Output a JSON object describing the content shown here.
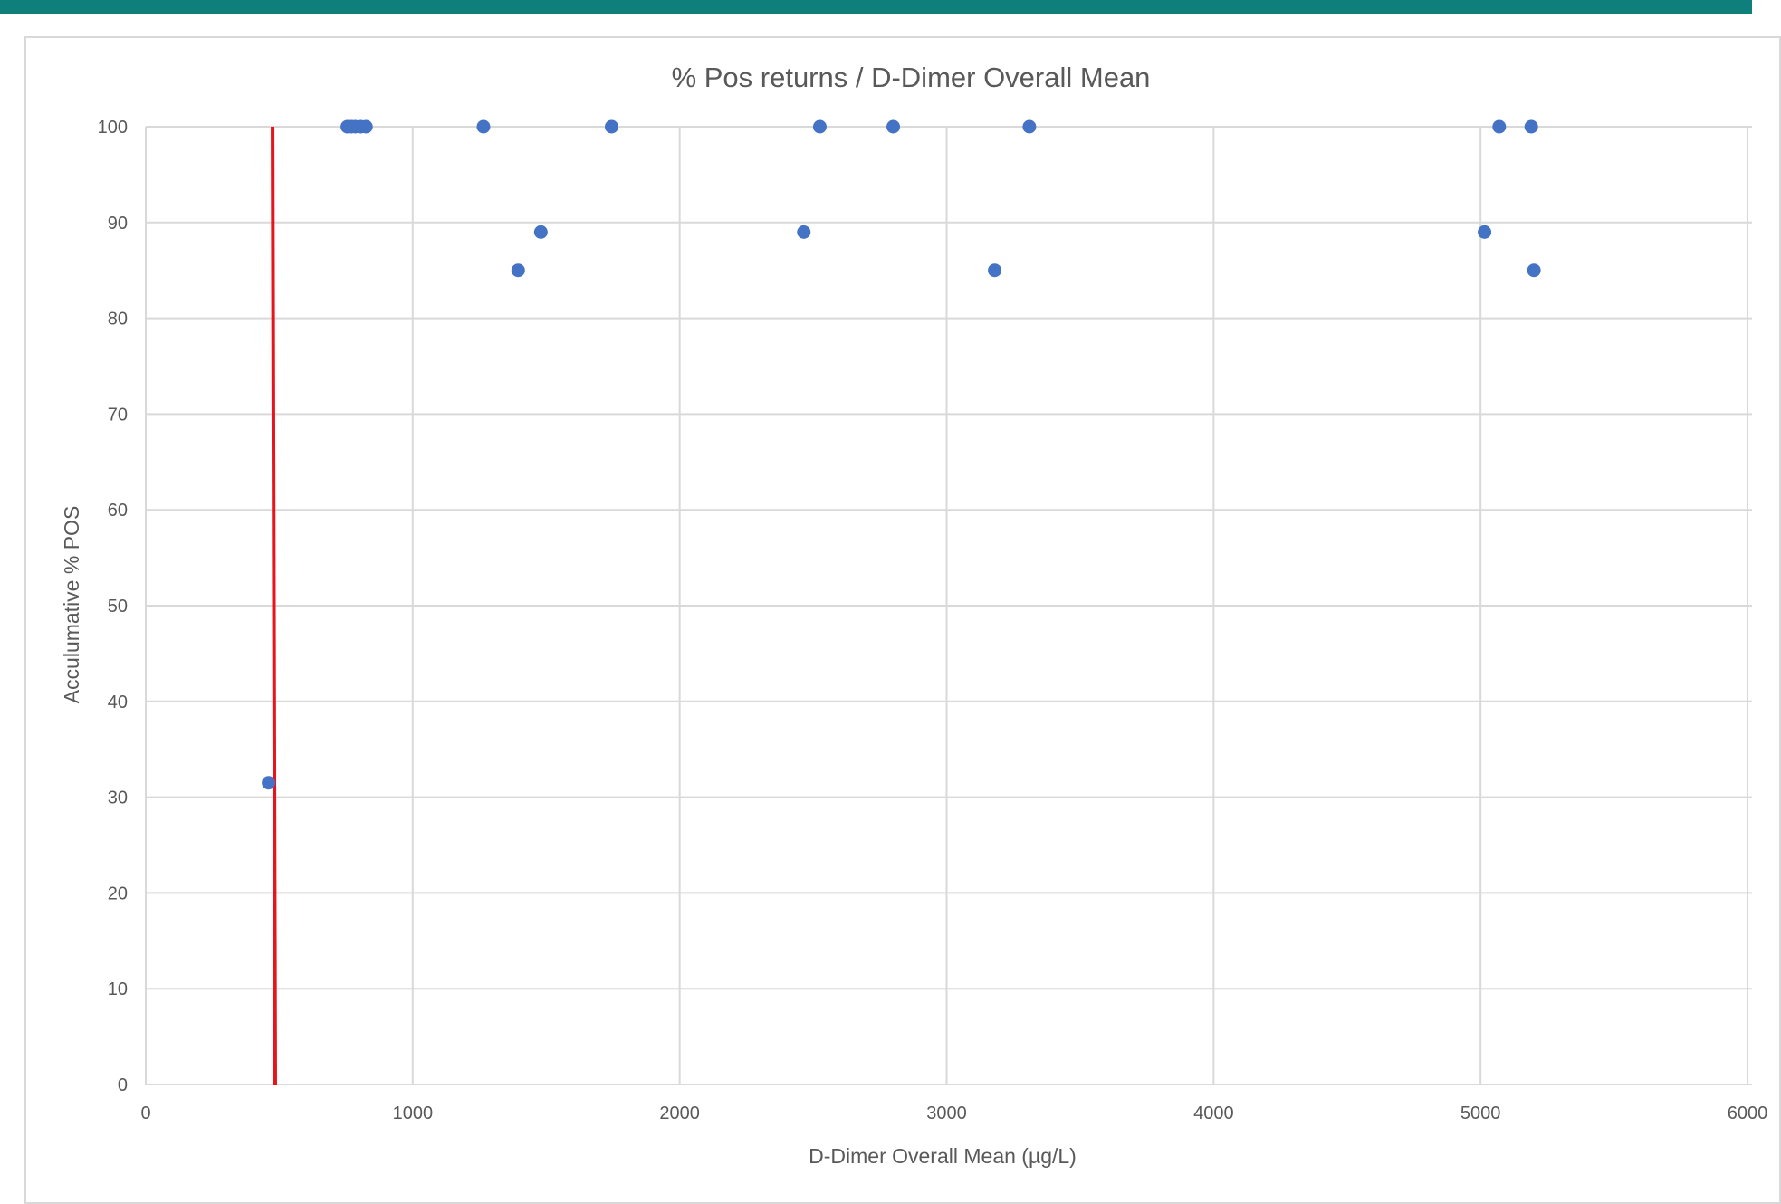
{
  "colors": {
    "top_bar": "#0f7f7c",
    "frame_border": "#d9d9d9",
    "gridline": "#d9d9d9",
    "text": "#595959",
    "marker": "#4472c4",
    "threshold_line": "#e8141b"
  },
  "chart_data": {
    "type": "scatter",
    "title": "% Pos returns / D-Dimer Overall Mean",
    "xlabel": "D-Dimer Overall Mean (µg/L)",
    "ylabel": "Acculumative % POS",
    "xlim": [
      0,
      6000
    ],
    "ylim": [
      0,
      100
    ],
    "x_ticks": [
      0,
      1000,
      2000,
      3000,
      4000,
      5000,
      6000
    ],
    "x_tick_labels": [
      "0",
      "1000",
      "2000",
      "3000",
      "4000",
      "5000",
      "6000"
    ],
    "y_ticks": [
      0,
      10,
      20,
      30,
      40,
      50,
      60,
      70,
      80,
      90,
      100
    ],
    "y_tick_labels": [
      "0",
      "10",
      "20",
      "30",
      "40",
      "50",
      "60",
      "70",
      "80",
      "90",
      "100"
    ],
    "grid": true,
    "legend": "none",
    "series": [
      {
        "marker_color": "#4472c4",
        "x": [
          460,
          755,
          770,
          785,
          805,
          825,
          1265,
          1395,
          1480,
          1745,
          2465,
          2525,
          2800,
          3180,
          3310,
          5015,
          5070,
          5190,
          5200
        ],
        "y": [
          31.5,
          100,
          100,
          100,
          100,
          100,
          100,
          85,
          89,
          100,
          89,
          100,
          100,
          85,
          100,
          89,
          100,
          100,
          85
        ]
      }
    ],
    "reference_line": {
      "color": "#e8141b",
      "from": [
        475,
        100
      ],
      "to": [
        485,
        0
      ]
    }
  }
}
